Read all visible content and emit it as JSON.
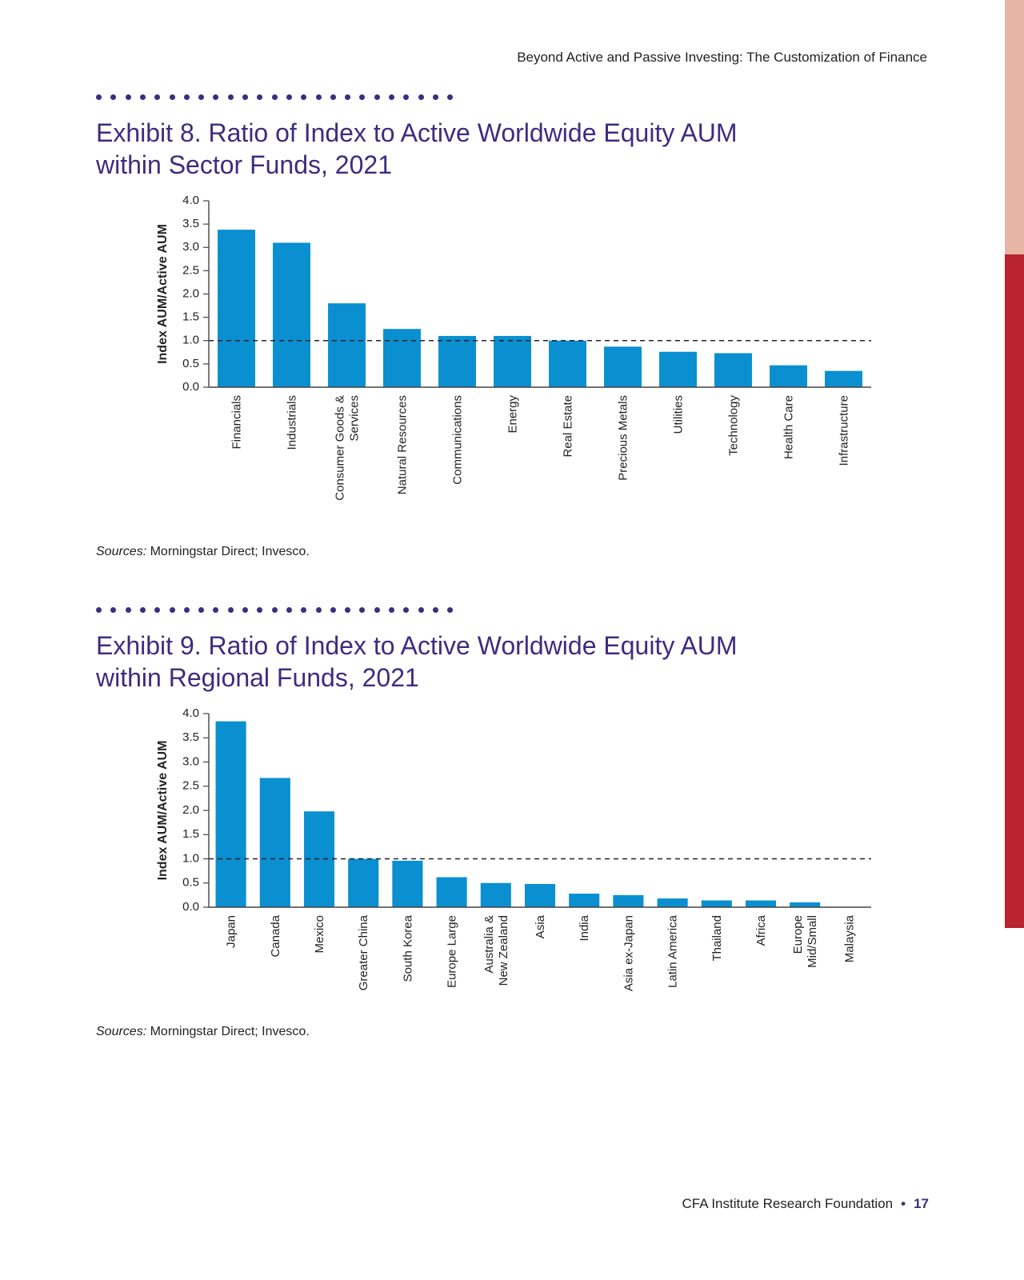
{
  "header": {
    "running_title": "Beyond Active and Passive Investing: The Customization of Finance"
  },
  "colors": {
    "accent": "#3e2c80",
    "bar": "#0a8fd0",
    "edge_light": "#e7b5a5",
    "edge_dark": "#b8232f"
  },
  "exhibits": [
    {
      "title_line1": "Exhibit 8. Ratio of Index to Active Worldwide Equity AUM",
      "title_line2": "within Sector Funds, 2021",
      "sources_label": "Sources:",
      "sources_text": " Morningstar Direct; Invesco."
    },
    {
      "title_line1": "Exhibit 9. Ratio of Index to Active Worldwide Equity AUM",
      "title_line2": "within Regional Funds, 2021",
      "sources_label": "Sources:",
      "sources_text": " Morningstar Direct; Invesco."
    }
  ],
  "chart_data": [
    {
      "type": "bar",
      "title": "Exhibit 8. Ratio of Index to Active Worldwide Equity AUM within Sector Funds, 2021",
      "ylabel": "Index AUM/Active AUM",
      "xlabel": "",
      "ylim": [
        0,
        4.0
      ],
      "yticks": [
        "0.0",
        "0.5",
        "1.0",
        "1.5",
        "2.0",
        "2.5",
        "3.0",
        "3.5",
        "4.0"
      ],
      "reference_line": 1.0,
      "categories": [
        [
          "Financials"
        ],
        [
          "Industrials"
        ],
        [
          "Consumer Goods &",
          "Services"
        ],
        [
          "Natural Resources"
        ],
        [
          "Communications"
        ],
        [
          "Energy"
        ],
        [
          "Real Estate"
        ],
        [
          "Precious Metals"
        ],
        [
          "Utilities"
        ],
        [
          "Technology"
        ],
        [
          "Health Care"
        ],
        [
          "Infrastructure"
        ]
      ],
      "values": [
        3.38,
        3.1,
        1.8,
        1.25,
        1.1,
        1.1,
        1.0,
        0.87,
        0.76,
        0.73,
        0.47,
        0.35
      ]
    },
    {
      "type": "bar",
      "title": "Exhibit 9. Ratio of Index to Active Worldwide Equity AUM within Regional Funds, 2021",
      "ylabel": "Index AUM/Active AUM",
      "xlabel": "",
      "ylim": [
        0,
        4.0
      ],
      "yticks": [
        "0.0",
        "0.5",
        "1.0",
        "1.5",
        "2.0",
        "2.5",
        "3.0",
        "3.5",
        "4.0"
      ],
      "reference_line": 1.0,
      "categories": [
        [
          "Japan"
        ],
        [
          "Canada"
        ],
        [
          "Mexico"
        ],
        [
          "Greater China"
        ],
        [
          "South Korea"
        ],
        [
          "Europe Large"
        ],
        [
          "Australia &",
          "New Zealand"
        ],
        [
          "Asia"
        ],
        [
          "India"
        ],
        [
          "Asia ex-Japan"
        ],
        [
          "Latin America"
        ],
        [
          "Thailand"
        ],
        [
          "Africa"
        ],
        [
          "Europe",
          "Mid/Small"
        ],
        [
          "Malaysia"
        ]
      ],
      "values": [
        3.84,
        2.67,
        1.98,
        1.0,
        0.96,
        0.62,
        0.5,
        0.48,
        0.28,
        0.25,
        0.18,
        0.14,
        0.14,
        0.1,
        0.0
      ]
    }
  ],
  "footer": {
    "org": "CFA Institute Research Foundation",
    "separator": "•",
    "page": "17"
  }
}
